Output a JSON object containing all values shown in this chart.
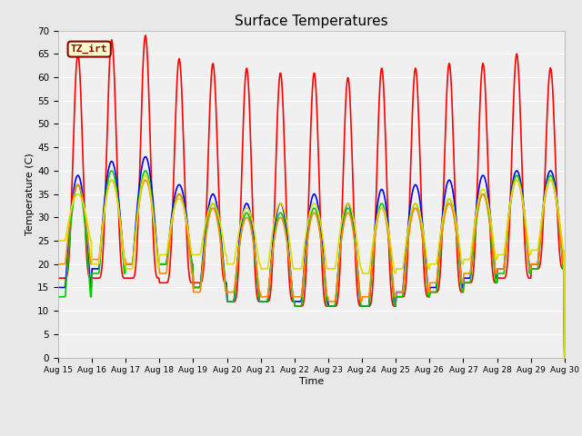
{
  "title": "Surface Temperatures",
  "xlabel": "Time",
  "ylabel": "Temperature (C)",
  "ylim": [
    0,
    70
  ],
  "yticks": [
    0,
    5,
    10,
    15,
    20,
    25,
    30,
    35,
    40,
    45,
    50,
    55,
    60,
    65,
    70
  ],
  "n_days": 15,
  "x_labels": [
    "Aug 15",
    "Aug 16",
    "Aug 17",
    "Aug 18",
    "Aug 19",
    "Aug 20",
    "Aug 21",
    "Aug 22",
    "Aug 23",
    "Aug 24",
    "Aug 25",
    "Aug 26",
    "Aug 27",
    "Aug 28",
    "Aug 29",
    "Aug 30"
  ],
  "series": {
    "IRT Ground": {
      "color": "#ff0000",
      "lw": 1.2
    },
    "IRT Canopy": {
      "color": "#0000ff",
      "lw": 1.2
    },
    "Floor Tair": {
      "color": "#00cc00",
      "lw": 1.2
    },
    "Tower TAir": {
      "color": "#ff8800",
      "lw": 1.2
    },
    "TsoilD_2cm": {
      "color": "#dddd00",
      "lw": 1.2
    }
  },
  "annotation_text": "TZ_irt",
  "annotation_color": "#880000",
  "annotation_bg": "#ffffcc",
  "fig_bg": "#e8e8e8",
  "plot_bg": "#f0f0f0",
  "irt_ground_peaks": [
    65,
    68,
    69,
    64,
    63,
    62,
    61,
    61,
    60,
    62,
    62,
    63,
    63,
    65,
    62
  ],
  "irt_ground_nights": [
    17,
    17,
    17,
    16,
    16,
    12,
    12,
    11,
    11,
    11,
    13,
    14,
    16,
    17,
    19
  ],
  "irt_canopy_peaks": [
    39,
    42,
    43,
    37,
    35,
    33,
    33,
    35,
    33,
    36,
    37,
    38,
    39,
    40,
    40
  ],
  "irt_canopy_nights": [
    15,
    19,
    20,
    20,
    15,
    12,
    12,
    12,
    11,
    11,
    14,
    15,
    17,
    19,
    20
  ],
  "floor_tair_peaks": [
    37,
    40,
    40,
    35,
    33,
    31,
    31,
    32,
    32,
    33,
    33,
    34,
    35,
    39,
    39
  ],
  "floor_tair_nights": [
    13,
    18,
    20,
    20,
    15,
    12,
    12,
    11,
    11,
    11,
    13,
    14,
    16,
    18,
    19
  ],
  "tower_tair_peaks": [
    37,
    38,
    38,
    35,
    32,
    30,
    30,
    31,
    31,
    32,
    32,
    33,
    35,
    38,
    38
  ],
  "tower_tair_nights": [
    20,
    21,
    20,
    18,
    14,
    14,
    13,
    13,
    12,
    13,
    14,
    16,
    18,
    19,
    20
  ],
  "tsoil_peaks": [
    35,
    38,
    39,
    34,
    33,
    32,
    33,
    33,
    33,
    32,
    33,
    34,
    36,
    38,
    38
  ],
  "tsoil_nights": [
    25,
    20,
    19,
    22,
    22,
    20,
    19,
    19,
    19,
    18,
    19,
    20,
    21,
    22,
    23
  ]
}
